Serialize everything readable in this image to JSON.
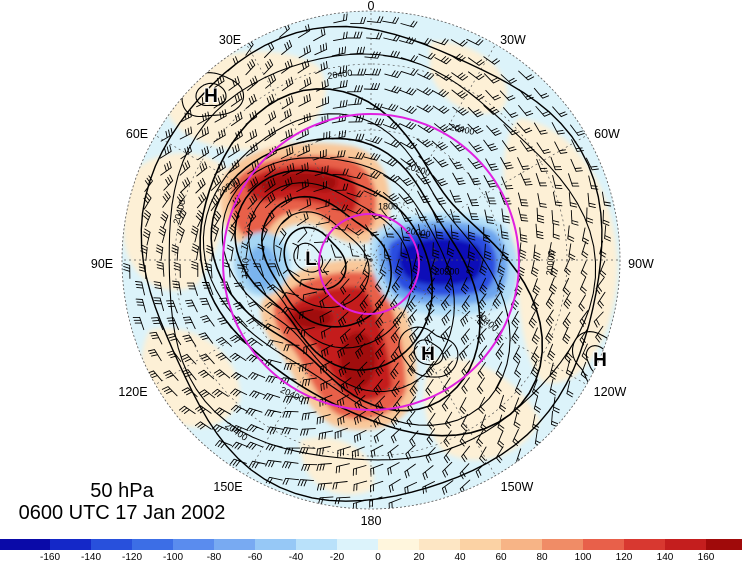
{
  "map": {
    "level": "50 hPa",
    "valid_time": "0600 UTC 17 Jan 2002",
    "longitude_labels": [
      "0",
      "30W",
      "60W",
      "90W",
      "120W",
      "150W",
      "180",
      "150E",
      "120E",
      "90E",
      "60E",
      "30E"
    ],
    "pressure_centers": [
      "H",
      "H",
      "H",
      "L"
    ],
    "contour_labels": [
      "20400",
      "20400",
      "20200",
      "20200",
      "20400",
      "1800",
      "20000",
      "1840",
      "20200",
      "20000",
      "20400",
      "20400",
      "20400"
    ],
    "colors": {
      "reference_rings": "#e020e0",
      "contours": "#000000",
      "wind_barbs": "#000000",
      "background": "#dcf3fa"
    }
  },
  "colorbar": {
    "ticks": [
      "-160",
      "-140",
      "-120",
      "-100",
      "-80",
      "-60",
      "-40",
      "-20",
      "0",
      "20",
      "40",
      "60",
      "80",
      "100",
      "120",
      "140",
      "160"
    ],
    "colors": [
      "#0a0aa8",
      "#1428c8",
      "#2850dc",
      "#3c6ee6",
      "#5a8cee",
      "#78aaf2",
      "#96c8f6",
      "#b9e1fa",
      "#dcf3fb",
      "#fff6dd",
      "#fde6c4",
      "#fbd2a4",
      "#f7b486",
      "#f08c66",
      "#e8604a",
      "#d83830",
      "#c41e1e",
      "#a00a0a"
    ]
  }
}
